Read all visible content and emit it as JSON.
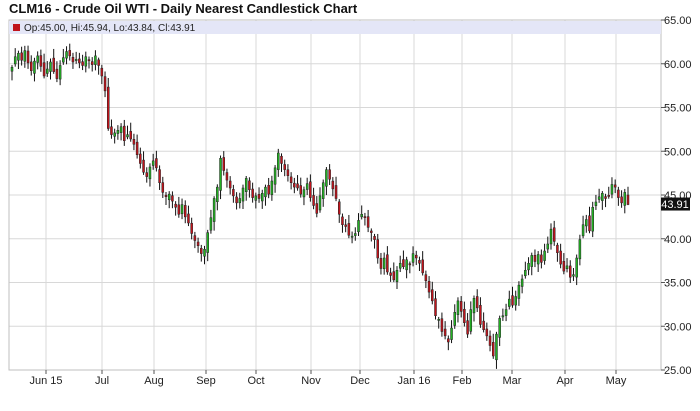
{
  "title": "CLM16 - Crude Oil WTI - Daily Nearest Candlestick Chart",
  "ohlc_summary": "Op:45.00, Hi:45.94, Lo:43.84, Cl:43.91",
  "last_price_label": "43.91",
  "colors": {
    "up": "#22b022",
    "down": "#c0141c",
    "wick": "#111111",
    "grid": "#d8d8d8",
    "legend_bg": "#e4e6f7",
    "last_box": "#111111"
  },
  "chart_data": {
    "type": "candlestick",
    "ylim": [
      25,
      65
    ],
    "y_ticks": [
      "25.00",
      "30.00",
      "35.00",
      "40.00",
      "45.00",
      "50.00",
      "55.00",
      "60.00",
      "65.00"
    ],
    "x_ticks": [
      "Jun 15",
      "Jul",
      "Aug",
      "Sep",
      "Oct",
      "Nov",
      "Dec",
      "Jan 16",
      "Feb",
      "Mar",
      "Apr",
      "May"
    ],
    "last_close": 43.91,
    "closes": [
      59.6,
      60.8,
      61.2,
      60.4,
      61.5,
      60.1,
      59.2,
      60.3,
      60.9,
      59.7,
      58.6,
      59.4,
      60.2,
      59.1,
      58.3,
      59.8,
      60.7,
      61.4,
      60.9,
      60.2,
      60.5,
      60.1,
      59.8,
      60.8,
      60.4,
      59.9,
      60.9,
      59.8,
      58.6,
      56.9,
      52.6,
      51.9,
      52.1,
      52.4,
      52.8,
      51.2,
      51.9,
      51.4,
      50.8,
      49.6,
      48.6,
      47.6,
      47.1,
      48.2,
      48.9,
      48.1,
      46.4,
      45.3,
      44.8,
      45.1,
      44.3,
      43.6,
      42.8,
      43.9,
      42.5,
      41.8,
      40.6,
      39.8,
      39.2,
      38.3,
      38.8,
      40.7,
      42.4,
      44.6,
      45.9,
      49.2,
      47.8,
      46.7,
      45.8,
      44.9,
      44.1,
      44.6,
      45.8,
      46.9,
      45.6,
      44.7,
      44.9,
      44.6,
      45.2,
      45.9,
      45.1,
      46.6,
      48.1,
      49.8,
      48.6,
      47.9,
      47.2,
      46.4,
      45.9,
      45.8,
      45.1,
      45.6,
      46.3,
      44.7,
      43.8,
      42.9,
      44.9,
      46.4,
      47.9,
      46.8,
      45.7,
      44.6,
      42.8,
      41.6,
      41.4,
      40.4,
      40.3,
      40.6,
      42.1,
      42.8,
      42.4,
      41.3,
      40.7,
      39.9,
      37.8,
      36.6,
      37.8,
      36.2,
      35.8,
      35.3,
      36.4,
      37.2,
      36.8,
      37.6,
      37.1,
      38.3,
      37.8,
      37.2,
      36.1,
      35.2,
      33.9,
      32.9,
      31.2,
      30.8,
      29.4,
      28.9,
      28.2,
      29.8,
      31.6,
      32.9,
      31.7,
      30.4,
      29.1,
      31.9,
      33.2,
      32.1,
      30.2,
      29.6,
      28.9,
      27.8,
      26.6,
      29.1,
      30.9,
      31.2,
      31.9,
      33.1,
      32.4,
      33.4,
      34.7,
      35.4,
      36.4,
      37.2,
      38.1,
      37.4,
      38.2,
      37.3,
      38.6,
      39.4,
      41.1,
      39.7,
      38.4,
      37.1,
      36.3,
      36.9,
      35.6,
      35.9,
      37.8,
      39.9,
      41.6,
      42.2,
      40.9,
      43.6,
      44.2,
      44.8,
      45.2,
      44.6,
      44.9,
      46.2,
      45.9,
      44.7,
      44.1,
      45.3,
      43.91
    ]
  }
}
